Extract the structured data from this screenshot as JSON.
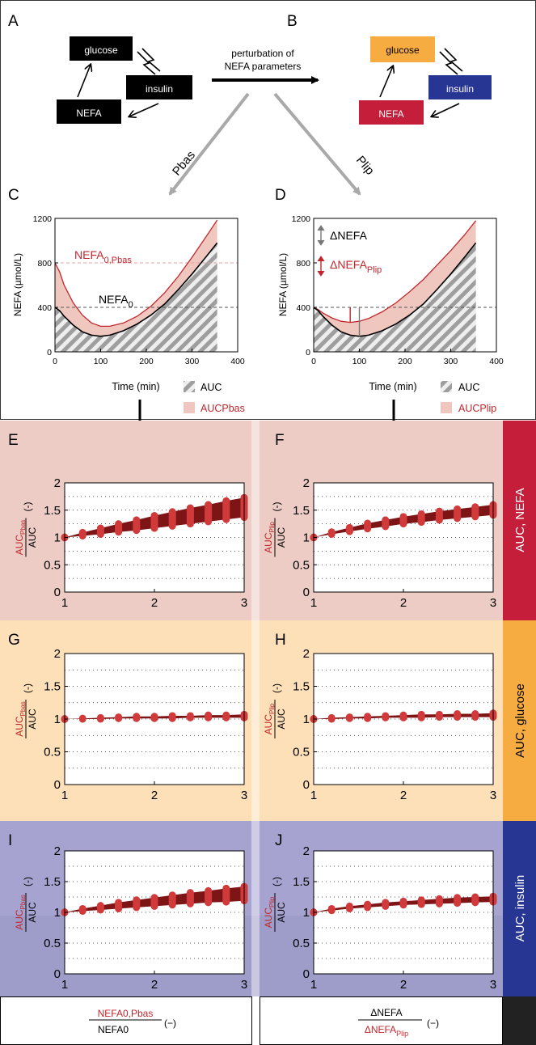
{
  "diagram": {
    "panel_A": {
      "letter": "A",
      "nodes": {
        "glucose": "glucose",
        "insulin": "insulin",
        "nefa": "NEFA"
      }
    },
    "panel_B": {
      "letter": "B",
      "nodes": {
        "glucose": "glucose",
        "insulin": "insulin",
        "nefa": "NEFA"
      }
    },
    "perturbation_label_1": "perturbation of",
    "perturbation_label_2": "NEFA parameters",
    "branch_left": "Pbas",
    "branch_right": "Plip",
    "colors": {
      "glucose": "#f7ac42",
      "insulin": "#273593",
      "nefa": "#c41e3a",
      "black": "#000000",
      "arrow_grey": "#a9a9a9"
    }
  },
  "time_panels": {
    "C": {
      "letter": "C",
      "ylabel": "NEFA (µmol/L)",
      "xlabel": "Time (min)",
      "ann1_main": "NEFA",
      "ann1_sub": "0,Pbas",
      "ann2_main": "NEFA",
      "ann2_sub": "0",
      "legend_auc": "AUC",
      "legend_fill": "AUCPbas"
    },
    "D": {
      "letter": "D",
      "ylabel": "NEFA (µmol/L)",
      "xlabel": "Time (min)",
      "ann1": "ΔNEFA",
      "ann2_main": "ΔNEFA",
      "ann2_sub": "Plip",
      "legend_auc": "AUC",
      "legend_fill": "AUCPlip"
    }
  },
  "ratio_panels": {
    "E": {
      "letter": "E",
      "y_num_main": "AUC",
      "y_num_sub": "Pbas",
      "y_den": "AUC",
      "y_unit": "(-)"
    },
    "F": {
      "letter": "F",
      "y_num_main": "AUC",
      "y_num_sub": "Plip",
      "y_den": "AUC",
      "y_unit": "(-)"
    },
    "G": {
      "letter": "G",
      "y_num_main": "AUC",
      "y_num_sub": "Pbas",
      "y_den": "AUC",
      "y_unit": "(-)"
    },
    "H": {
      "letter": "H",
      "y_num_main": "AUC",
      "y_num_sub": "Plip",
      "y_den": "AUC",
      "y_unit": "(-)"
    },
    "I": {
      "letter": "I",
      "y_num_main": "AUC",
      "y_num_sub": "Pbas",
      "y_den": "AUC",
      "y_unit": "(-)"
    },
    "J": {
      "letter": "J",
      "y_num_main": "AUC",
      "y_num_sub": "Plip",
      "y_den": "AUC",
      "y_unit": "(-)"
    }
  },
  "side_labels": {
    "nefa": "AUC, NEFA",
    "glucose": "AUC, glucose",
    "insulin": "AUC, insulin"
  },
  "bottom_labels": {
    "left": {
      "num": "NEFA0,Pbas",
      "den": "NEFA0",
      "unit": "(−)"
    },
    "right": {
      "num": "ΔNEFA",
      "den_main": "ΔNEFA",
      "den_sub": "Plip",
      "unit": "(−)"
    }
  },
  "chart_data": [
    {
      "id": "C",
      "type": "line",
      "title": "",
      "xlabel": "Time (min)",
      "ylabel": "NEFA (µmol/L)",
      "xlim": [
        0,
        400
      ],
      "ylim": [
        0,
        1200
      ],
      "xticks": [
        0,
        100,
        200,
        300,
        400
      ],
      "yticks": [
        0,
        400,
        800,
        1200
      ],
      "reference_lines": [
        {
          "y": 400,
          "color": "#555555"
        },
        {
          "y": 800,
          "color": "#e3a3a3"
        }
      ],
      "series": [
        {
          "name": "NEFA0",
          "color": "#000000",
          "x": [
            0,
            10,
            20,
            40,
            60,
            80,
            100,
            120,
            150,
            180,
            210,
            240,
            270,
            300,
            330,
            355
          ],
          "y": [
            400,
            370,
            320,
            240,
            180,
            150,
            140,
            150,
            190,
            250,
            330,
            430,
            560,
            700,
            850,
            980
          ]
        },
        {
          "name": "NEFA0,Pbas",
          "color": "#c0272d",
          "x": [
            0,
            10,
            20,
            40,
            60,
            80,
            100,
            120,
            150,
            180,
            210,
            240,
            270,
            300,
            330,
            355
          ],
          "y": [
            800,
            720,
            600,
            440,
            330,
            260,
            230,
            230,
            260,
            320,
            410,
            530,
            680,
            850,
            1030,
            1185
          ]
        }
      ],
      "legend": [
        "AUC",
        "AUCPbas"
      ]
    },
    {
      "id": "D",
      "type": "line",
      "title": "",
      "xlabel": "Time (min)",
      "ylabel": "NEFA (µmol/L)",
      "xlim": [
        0,
        400
      ],
      "ylim": [
        0,
        1200
      ],
      "xticks": [
        0,
        100,
        200,
        300,
        400
      ],
      "yticks": [
        0,
        400,
        800,
        1200
      ],
      "reference_lines": [
        {
          "y": 400,
          "color": "#555555"
        }
      ],
      "series": [
        {
          "name": "NEFA0",
          "color": "#000000",
          "x": [
            0,
            10,
            20,
            40,
            60,
            80,
            100,
            120,
            150,
            180,
            210,
            240,
            270,
            300,
            330,
            355
          ],
          "y": [
            400,
            370,
            320,
            240,
            180,
            150,
            140,
            150,
            190,
            250,
            330,
            430,
            560,
            700,
            850,
            980
          ]
        },
        {
          "name": "NEFAPlip",
          "color": "#c0272d",
          "x": [
            0,
            10,
            20,
            40,
            60,
            80,
            100,
            120,
            150,
            180,
            210,
            240,
            270,
            300,
            330,
            355
          ],
          "y": [
            400,
            380,
            350,
            305,
            275,
            265,
            275,
            300,
            360,
            440,
            540,
            650,
            780,
            910,
            1050,
            1180
          ]
        }
      ],
      "legend": [
        "AUC",
        "AUCPlip"
      ]
    },
    {
      "id": "E",
      "type": "area",
      "xlim": [
        1,
        3
      ],
      "ylim": [
        0,
        2
      ],
      "xticks": [
        1,
        2,
        3
      ],
      "yticks": [
        0,
        0.5,
        1,
        1.5,
        2
      ],
      "x": [
        1,
        1.2,
        1.4,
        1.6,
        1.8,
        2,
        2.2,
        2.4,
        2.6,
        2.8,
        3
      ],
      "low": [
        1,
        1.03,
        1.06,
        1.1,
        1.13,
        1.17,
        1.21,
        1.25,
        1.29,
        1.33,
        1.37
      ],
      "high": [
        1,
        1.09,
        1.17,
        1.25,
        1.32,
        1.4,
        1.47,
        1.54,
        1.6,
        1.67,
        1.73
      ]
    },
    {
      "id": "F",
      "type": "area",
      "xlim": [
        1,
        3
      ],
      "ylim": [
        0,
        2
      ],
      "xticks": [
        1,
        2,
        3
      ],
      "yticks": [
        0,
        0.5,
        1,
        1.5,
        2
      ],
      "x": [
        1,
        1.2,
        1.4,
        1.6,
        1.8,
        2,
        2.2,
        2.4,
        2.6,
        2.8,
        3
      ],
      "low": [
        1,
        1.06,
        1.11,
        1.16,
        1.2,
        1.25,
        1.28,
        1.32,
        1.35,
        1.38,
        1.41
      ],
      "high": [
        1,
        1.1,
        1.18,
        1.26,
        1.32,
        1.38,
        1.43,
        1.48,
        1.52,
        1.56,
        1.6
      ]
    },
    {
      "id": "G",
      "type": "area",
      "xlim": [
        1,
        3
      ],
      "ylim": [
        0,
        2
      ],
      "xticks": [
        1,
        2,
        3
      ],
      "yticks": [
        0,
        0.5,
        1,
        1.5,
        2
      ],
      "x": [
        1,
        1.2,
        1.4,
        1.6,
        1.8,
        2,
        2.2,
        2.4,
        2.6,
        2.8,
        3
      ],
      "low": [
        1,
        1,
        1,
        1.01,
        1.01,
        1.01,
        1.01,
        1.02,
        1.02,
        1.02,
        1.02
      ],
      "high": [
        1,
        1.01,
        1.02,
        1.03,
        1.04,
        1.04,
        1.05,
        1.05,
        1.06,
        1.06,
        1.07
      ]
    },
    {
      "id": "H",
      "type": "area",
      "xlim": [
        1,
        3
      ],
      "ylim": [
        0,
        2
      ],
      "xticks": [
        1,
        2,
        3
      ],
      "yticks": [
        0,
        0.5,
        1,
        1.5,
        2
      ],
      "x": [
        1,
        1.2,
        1.4,
        1.6,
        1.8,
        2,
        2.2,
        2.4,
        2.6,
        2.8,
        3
      ],
      "low": [
        1,
        1,
        1.01,
        1.01,
        1.02,
        1.02,
        1.02,
        1.03,
        1.03,
        1.03,
        1.03
      ],
      "high": [
        1,
        1.02,
        1.03,
        1.04,
        1.05,
        1.06,
        1.07,
        1.07,
        1.08,
        1.08,
        1.09
      ]
    },
    {
      "id": "I",
      "type": "area",
      "xlim": [
        1,
        3
      ],
      "ylim": [
        0,
        2
      ],
      "xticks": [
        1,
        2,
        3
      ],
      "yticks": [
        0,
        0.5,
        1,
        1.5,
        2
      ],
      "x": [
        1,
        1.2,
        1.4,
        1.6,
        1.8,
        2,
        2.2,
        2.4,
        2.6,
        2.8,
        3
      ],
      "low": [
        1,
        1.02,
        1.04,
        1.06,
        1.08,
        1.1,
        1.12,
        1.14,
        1.16,
        1.17,
        1.19
      ],
      "high": [
        1,
        1.06,
        1.11,
        1.16,
        1.2,
        1.24,
        1.28,
        1.32,
        1.35,
        1.39,
        1.42
      ]
    },
    {
      "id": "J",
      "type": "area",
      "xlim": [
        1,
        3
      ],
      "ylim": [
        0,
        2
      ],
      "xticks": [
        1,
        2,
        3
      ],
      "yticks": [
        0,
        0.5,
        1,
        1.5,
        2
      ],
      "x": [
        1,
        1.2,
        1.4,
        1.6,
        1.8,
        2,
        2.2,
        2.4,
        2.6,
        2.8,
        3
      ],
      "low": [
        1,
        1.03,
        1.06,
        1.08,
        1.1,
        1.12,
        1.13,
        1.14,
        1.15,
        1.16,
        1.17
      ],
      "high": [
        1,
        1.06,
        1.1,
        1.13,
        1.16,
        1.18,
        1.2,
        1.22,
        1.24,
        1.25,
        1.26
      ]
    }
  ]
}
